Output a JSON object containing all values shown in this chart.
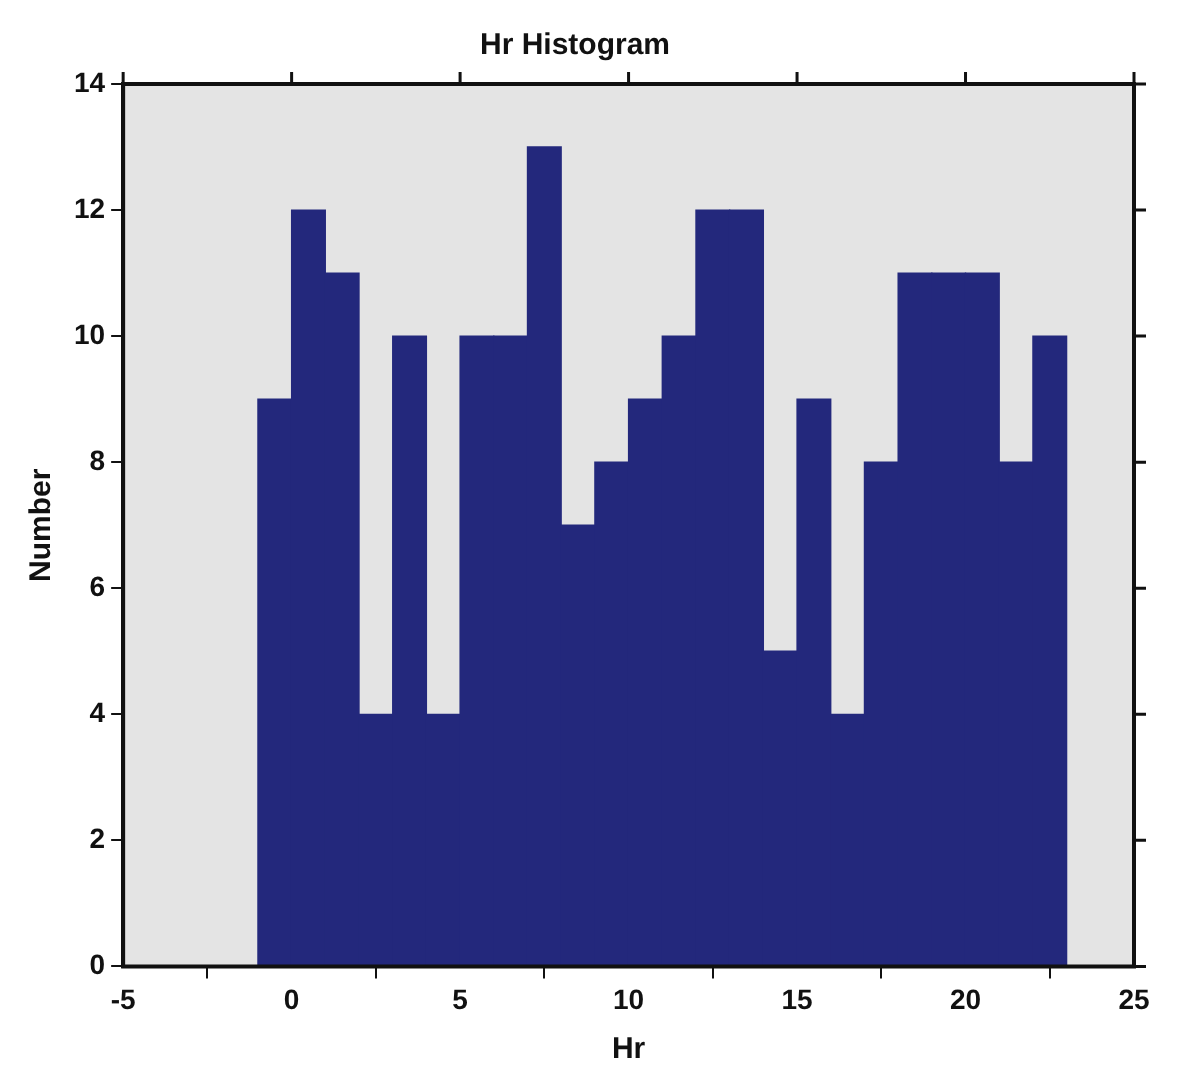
{
  "chart_data": {
    "type": "histogram",
    "title": "Hr Histogram",
    "xlabel": "Hr",
    "ylabel": "Number",
    "bins": [
      -1,
      0,
      1,
      2,
      3,
      4,
      5,
      6,
      7,
      8,
      9,
      10,
      11,
      12,
      13,
      14,
      15,
      16,
      17,
      18,
      19,
      20,
      21,
      22,
      23
    ],
    "values": [
      9,
      12,
      11,
      4,
      10,
      4,
      10,
      10,
      13,
      7,
      8,
      9,
      10,
      12,
      12,
      5,
      9,
      4,
      8,
      11,
      11,
      11,
      8,
      10
    ],
    "color": "#23287c",
    "xlim": [
      -5,
      25
    ],
    "xticks": [
      -5,
      0,
      5,
      10,
      15,
      20,
      25
    ],
    "ylim": [
      0,
      14
    ],
    "yticks": [
      0,
      2,
      4,
      6,
      8,
      10,
      12,
      14
    ],
    "legend": false
  }
}
